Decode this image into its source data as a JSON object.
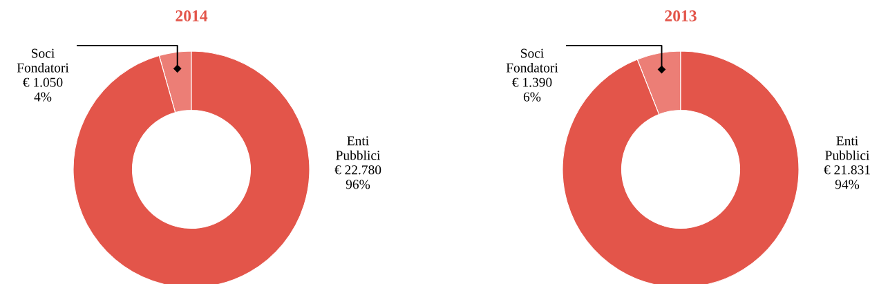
{
  "chart_data": [
    {
      "type": "donut",
      "title": "2014",
      "categories": [
        "Soci Fondatori",
        "Enti Pubblici"
      ],
      "values": [
        1050,
        22780
      ],
      "colors": [
        "#ec7e76",
        "#e3554a"
      ],
      "value_labels": [
        "€ 1.050\n4%",
        "€ 22.780\n96%"
      ]
    },
    {
      "type": "donut",
      "title": "2013",
      "categories": [
        "Soci Fondatori",
        "Enti Pubblici"
      ],
      "values": [
        1390,
        21831
      ],
      "colors": [
        "#ec7e76",
        "#e3554a"
      ],
      "value_labels": [
        "€ 1.390\n6%",
        "€ 21.831\n94%"
      ]
    }
  ]
}
